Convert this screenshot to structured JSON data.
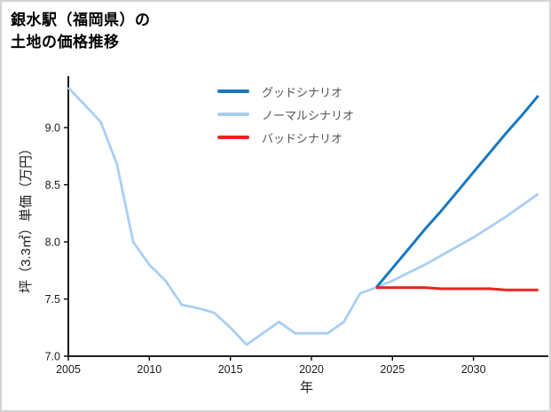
{
  "window": {
    "background": "#ffffff",
    "border_color": "#d4d4d4"
  },
  "header": {
    "title_line1": "銀水駅（福岡県）の",
    "title_line2": "土地の価格推移"
  },
  "chart_data": {
    "type": "line",
    "title": "銀水駅（福岡県）の土地の価格推移",
    "xlabel": "年",
    "ylabel": "坪（3.3㎡）単価（万円）",
    "xlim": [
      2005,
      2034.4
    ],
    "ylim": [
      7.0,
      9.45
    ],
    "x_ticks": [
      2005,
      2010,
      2015,
      2020,
      2025,
      2030
    ],
    "y_ticks": [
      "7.0",
      "7.5",
      "8.0",
      "8.5",
      "9.0"
    ],
    "grid": false,
    "legend_position": "upper center",
    "axis_color": "#000000",
    "draw_order": [
      1,
      0,
      2
    ],
    "series": [
      {
        "name": "グッドシナリオ",
        "color": "#1878be",
        "width": 3,
        "x": [
          2024,
          2025,
          2026,
          2027,
          2028,
          2029,
          2030,
          2031,
          2032,
          2033,
          2034
        ],
        "y": [
          7.6,
          7.77,
          7.94,
          8.11,
          8.27,
          8.44,
          8.61,
          8.78,
          8.95,
          9.11,
          9.28
        ]
      },
      {
        "name": "ノーマルシナリオ",
        "color": "#a9cff2",
        "width": 2.8,
        "x": [
          2005,
          2006,
          2007,
          2008,
          2009,
          2010,
          2011,
          2012,
          2013,
          2014,
          2015,
          2016,
          2017,
          2018,
          2019,
          2020,
          2021,
          2022,
          2023,
          2024,
          2025,
          2026,
          2027,
          2028,
          2029,
          2030,
          2031,
          2032,
          2033,
          2034
        ],
        "y": [
          9.35,
          9.2,
          9.05,
          8.68,
          8.0,
          7.8,
          7.66,
          7.45,
          7.42,
          7.38,
          7.25,
          7.1,
          7.2,
          7.3,
          7.2,
          7.2,
          7.2,
          7.3,
          7.55,
          7.6,
          7.66,
          7.73,
          7.8,
          7.88,
          7.96,
          8.04,
          8.13,
          8.22,
          8.32,
          8.42
        ]
      },
      {
        "name": "バッドシナリオ",
        "color": "#e62520",
        "width": 3,
        "x": [
          2024,
          2025,
          2026,
          2027,
          2028,
          2029,
          2030,
          2031,
          2032,
          2033,
          2034
        ],
        "y": [
          7.6,
          7.6,
          7.6,
          7.6,
          7.59,
          7.59,
          7.59,
          7.59,
          7.58,
          7.58,
          7.58
        ]
      }
    ]
  }
}
